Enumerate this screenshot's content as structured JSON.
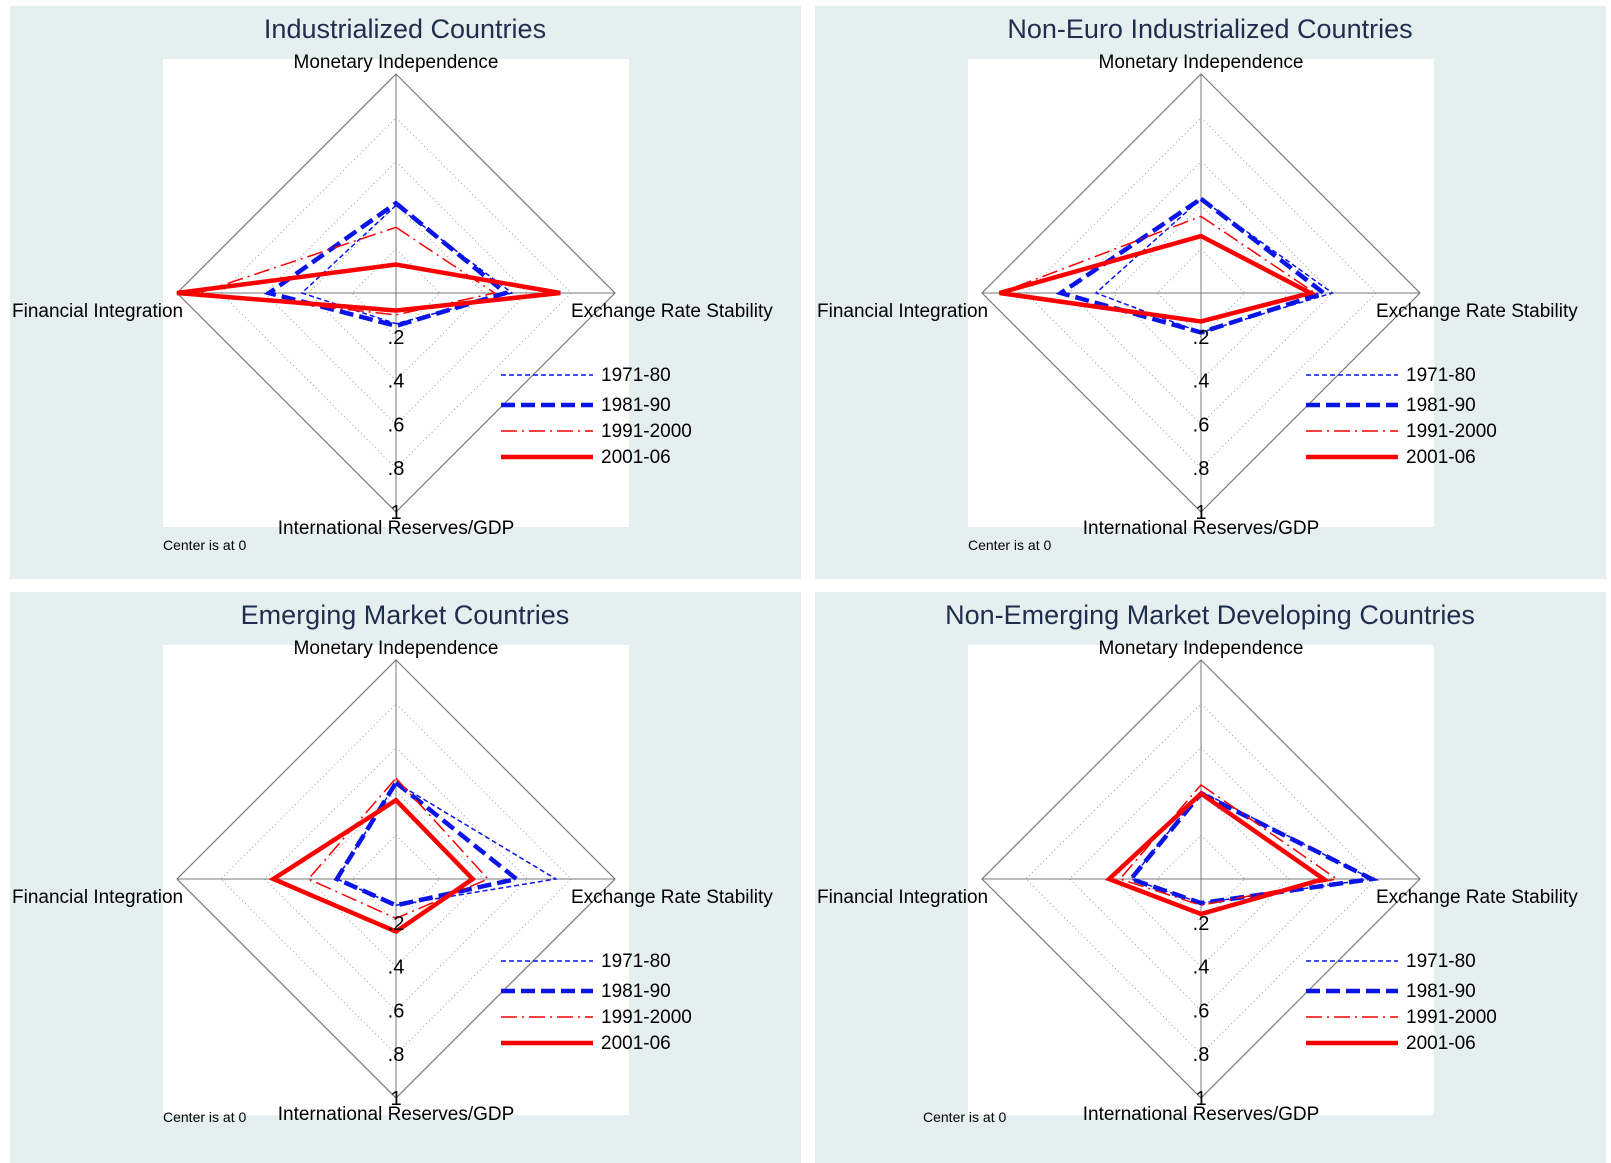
{
  "axes": [
    "Monetary Independence",
    "Exchange Rate Stability",
    "International Reserves/GDP",
    "Financial Integration"
  ],
  "ticks": [
    ".2",
    ".4",
    ".6",
    ".8",
    "1"
  ],
  "legend": [
    "1971-80",
    "1981-90",
    "1991-2000",
    "2001-06"
  ],
  "note": "Center is at 0",
  "colors": {
    "blue": "#0a14e6",
    "red": "#fa0000",
    "background": "#e6efef"
  },
  "chart_data": [
    {
      "type": "radar",
      "title": "Industrialized Countries",
      "axes": [
        "Monetary Independence",
        "Exchange Rate Stability",
        "International Reserves/GDP",
        "Financial Integration"
      ],
      "range": [
        0,
        1
      ],
      "series": [
        {
          "name": "1971-80",
          "values": [
            0.4,
            0.53,
            0.14,
            0.43
          ]
        },
        {
          "name": "1981-90",
          "values": [
            0.41,
            0.5,
            0.15,
            0.58
          ]
        },
        {
          "name": "1991-2000",
          "values": [
            0.3,
            0.45,
            0.1,
            0.9
          ]
        },
        {
          "name": "2001-06",
          "values": [
            0.13,
            0.75,
            0.08,
            1.0
          ]
        }
      ]
    },
    {
      "type": "radar",
      "title": "Non-Euro Industrialized Countries",
      "axes": [
        "Monetary Independence",
        "Exchange Rate Stability",
        "International Reserves/GDP",
        "Financial Integration"
      ],
      "range": [
        0,
        1
      ],
      "series": [
        {
          "name": "1971-80",
          "values": [
            0.43,
            0.6,
            0.18,
            0.48
          ]
        },
        {
          "name": "1981-90",
          "values": [
            0.43,
            0.56,
            0.18,
            0.64
          ]
        },
        {
          "name": "1991-2000",
          "values": [
            0.35,
            0.52,
            0.13,
            0.92
          ]
        },
        {
          "name": "2001-06",
          "values": [
            0.26,
            0.5,
            0.13,
            0.92
          ]
        }
      ]
    },
    {
      "type": "radar",
      "title": "Emerging Market Countries",
      "axes": [
        "Monetary Independence",
        "Exchange Rate Stability",
        "International Reserves/GDP",
        "Financial Integration"
      ],
      "range": [
        0,
        1
      ],
      "series": [
        {
          "name": "1971-80",
          "values": [
            0.44,
            0.73,
            0.12,
            0.27
          ]
        },
        {
          "name": "1981-90",
          "values": [
            0.44,
            0.55,
            0.12,
            0.27
          ]
        },
        {
          "name": "1991-2000",
          "values": [
            0.46,
            0.42,
            0.18,
            0.4
          ]
        },
        {
          "name": "2001-06",
          "values": [
            0.36,
            0.35,
            0.24,
            0.56
          ]
        }
      ]
    },
    {
      "type": "radar",
      "title": "Non-Emerging Market Developing Countries",
      "axes": [
        "Monetary Independence",
        "Exchange Rate Stability",
        "International Reserves/GDP",
        "Financial Integration"
      ],
      "range": [
        0,
        1
      ],
      "series": [
        {
          "name": "1971-80",
          "values": [
            0.4,
            0.78,
            0.11,
            0.32
          ]
        },
        {
          "name": "1981-90",
          "values": [
            0.39,
            0.78,
            0.11,
            0.32
          ]
        },
        {
          "name": "1991-2000",
          "values": [
            0.43,
            0.62,
            0.12,
            0.37
          ]
        },
        {
          "name": "2001-06",
          "values": [
            0.39,
            0.56,
            0.16,
            0.42
          ]
        }
      ]
    }
  ]
}
